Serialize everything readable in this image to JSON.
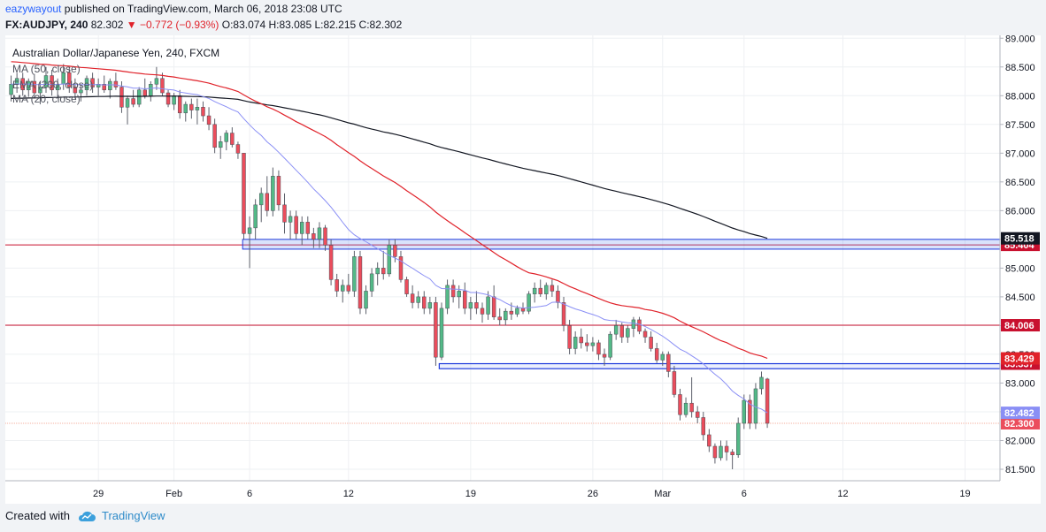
{
  "header": {
    "user": "eazywayout",
    "published": "published on TradingView.com, March 06, 2018 23:08 UTC",
    "symbol": "FX:AUDJPY, 240",
    "last": "82.302",
    "change_arrow": "▼",
    "change": "−0.772 (−0.93%)",
    "ohlc": "O:83.074 H:83.085 L:82.215 C:82.302"
  },
  "footer": {
    "created": "Created with",
    "brand": "TradingView",
    "logo_icon": "tradingview-cloud-icon"
  },
  "chart_data": {
    "type": "candlestick",
    "title": "Australian Dollar/Japanese Yen, 240, FXCM",
    "legend": [
      "MA (50, close)",
      "EMA (200, close)",
      "MA (20, close)"
    ],
    "colors": {
      "up": "#53b987",
      "down": "#eb4d5c",
      "ma50": "#e0222a",
      "ema200": "#131722",
      "ma20": "#8a8ff5",
      "hline": "#c8102e",
      "zone": "#1e3adb"
    },
    "y_ticks": [
      "81.500",
      "82.000",
      "82.500",
      "83.000",
      "83.500",
      "84.000",
      "84.500",
      "85.000",
      "85.500",
      "86.000",
      "86.500",
      "87.000",
      "87.500",
      "88.000",
      "88.500",
      "89.000"
    ],
    "ylim": [
      81.3,
      89.05
    ],
    "x_ticks": [
      {
        "label": "29",
        "idx": 15
      },
      {
        "label": "Feb",
        "idx": 28
      },
      {
        "label": "6",
        "idx": 41
      },
      {
        "label": "12",
        "idx": 58
      },
      {
        "label": "19",
        "idx": 79
      },
      {
        "label": "26",
        "idx": 100
      },
      {
        "label": "Mar",
        "idx": 112
      },
      {
        "label": "6",
        "idx": 126
      },
      {
        "label": "12",
        "idx": 143
      },
      {
        "label": "19",
        "idx": 164
      }
    ],
    "xlim": [
      -1,
      170
    ],
    "ohlc": [
      [
        88.02,
        88.35,
        87.9,
        88.2
      ],
      [
        88.2,
        88.4,
        88.05,
        88.3
      ],
      [
        88.3,
        88.4,
        88.0,
        88.1
      ],
      [
        88.1,
        88.3,
        87.98,
        88.25
      ],
      [
        88.25,
        88.38,
        87.95,
        88.05
      ],
      [
        88.05,
        88.25,
        87.85,
        88.15
      ],
      [
        88.15,
        88.5,
        88.05,
        88.35
      ],
      [
        88.35,
        88.45,
        88.0,
        88.1
      ],
      [
        88.1,
        88.3,
        87.95,
        88.2
      ],
      [
        88.2,
        88.55,
        88.1,
        88.4
      ],
      [
        88.4,
        88.5,
        88.05,
        88.15
      ],
      [
        88.15,
        88.3,
        87.95,
        88.05
      ],
      [
        88.05,
        88.2,
        87.9,
        88.1
      ],
      [
        88.1,
        88.35,
        88.0,
        88.3
      ],
      [
        88.3,
        88.4,
        88.05,
        88.15
      ],
      [
        88.15,
        88.3,
        88.0,
        88.2
      ],
      [
        88.2,
        88.35,
        88.05,
        88.1
      ],
      [
        88.1,
        88.3,
        87.95,
        88.25
      ],
      [
        88.25,
        88.4,
        88.1,
        88.15
      ],
      [
        88.15,
        88.25,
        87.7,
        87.8
      ],
      [
        87.8,
        88.0,
        87.5,
        87.95
      ],
      [
        87.95,
        88.1,
        87.8,
        87.85
      ],
      [
        87.85,
        88.15,
        87.8,
        88.1
      ],
      [
        88.1,
        88.3,
        87.95,
        88.0
      ],
      [
        88.0,
        88.25,
        87.9,
        88.2
      ],
      [
        88.2,
        88.5,
        88.1,
        88.3
      ],
      [
        88.3,
        88.4,
        88.0,
        88.05
      ],
      [
        88.05,
        88.1,
        87.8,
        87.85
      ],
      [
        87.85,
        88.05,
        87.75,
        88.0
      ],
      [
        88.0,
        88.1,
        87.6,
        87.7
      ],
      [
        87.7,
        87.9,
        87.55,
        87.85
      ],
      [
        87.85,
        87.95,
        87.6,
        87.75
      ],
      [
        87.75,
        87.95,
        87.5,
        87.8
      ],
      [
        87.8,
        87.9,
        87.55,
        87.65
      ],
      [
        87.65,
        87.8,
        87.4,
        87.5
      ],
      [
        87.5,
        87.6,
        87.0,
        87.1
      ],
      [
        87.1,
        87.3,
        86.9,
        87.2
      ],
      [
        87.2,
        87.4,
        87.05,
        87.35
      ],
      [
        87.35,
        87.45,
        87.1,
        87.15
      ],
      [
        87.15,
        87.2,
        86.9,
        87.0
      ],
      [
        87.0,
        87.0,
        85.5,
        85.6
      ],
      [
        85.6,
        85.9,
        85.0,
        85.7
      ],
      [
        85.7,
        86.2,
        85.5,
        86.1
      ],
      [
        86.1,
        86.4,
        85.8,
        86.3
      ],
      [
        86.3,
        86.6,
        85.9,
        86.0
      ],
      [
        86.0,
        86.75,
        85.9,
        86.6
      ],
      [
        86.6,
        86.7,
        86.0,
        86.1
      ],
      [
        86.1,
        86.3,
        85.6,
        85.8
      ],
      [
        85.8,
        86.0,
        85.5,
        85.9
      ],
      [
        85.9,
        86.0,
        85.5,
        85.6
      ],
      [
        85.6,
        85.9,
        85.4,
        85.8
      ],
      [
        85.8,
        85.9,
        85.5,
        85.6
      ],
      [
        85.6,
        85.7,
        85.35,
        85.5
      ],
      [
        85.5,
        85.8,
        85.35,
        85.7
      ],
      [
        85.7,
        85.75,
        85.3,
        85.4
      ],
      [
        85.4,
        85.5,
        84.7,
        84.8
      ],
      [
        84.8,
        84.9,
        84.5,
        84.6
      ],
      [
        84.6,
        84.8,
        84.4,
        84.7
      ],
      [
        84.7,
        84.9,
        84.55,
        84.6
      ],
      [
        84.6,
        85.3,
        84.5,
        85.2
      ],
      [
        85.2,
        85.3,
        84.2,
        84.3
      ],
      [
        84.3,
        84.7,
        84.2,
        84.6
      ],
      [
        84.6,
        85.0,
        84.5,
        84.9
      ],
      [
        84.9,
        85.1,
        84.7,
        85.0
      ],
      [
        85.0,
        85.3,
        84.8,
        84.9
      ],
      [
        84.9,
        85.5,
        84.85,
        85.4
      ],
      [
        85.4,
        85.5,
        85.1,
        85.2
      ],
      [
        85.2,
        85.3,
        84.75,
        84.8
      ],
      [
        84.8,
        84.85,
        84.5,
        84.55
      ],
      [
        84.55,
        84.7,
        84.3,
        84.4
      ],
      [
        84.4,
        84.6,
        84.3,
        84.5
      ],
      [
        84.5,
        84.6,
        84.2,
        84.3
      ],
      [
        84.3,
        84.5,
        84.2,
        84.4
      ],
      [
        84.4,
        84.5,
        83.3,
        83.45
      ],
      [
        83.45,
        84.4,
        83.4,
        84.3
      ],
      [
        84.3,
        84.8,
        84.2,
        84.7
      ],
      [
        84.7,
        84.8,
        84.4,
        84.5
      ],
      [
        84.5,
        84.7,
        84.3,
        84.6
      ],
      [
        84.6,
        84.75,
        84.2,
        84.3
      ],
      [
        84.3,
        84.5,
        84.1,
        84.4
      ],
      [
        84.4,
        84.6,
        84.2,
        84.3
      ],
      [
        84.3,
        84.4,
        84.05,
        84.2
      ],
      [
        84.2,
        84.6,
        84.1,
        84.5
      ],
      [
        84.5,
        84.7,
        84.1,
        84.15
      ],
      [
        84.15,
        84.3,
        84.0,
        84.1
      ],
      [
        84.1,
        84.3,
        84.0,
        84.25
      ],
      [
        84.25,
        84.4,
        84.1,
        84.2
      ],
      [
        84.2,
        84.35,
        84.15,
        84.3
      ],
      [
        84.3,
        84.4,
        84.2,
        84.25
      ],
      [
        84.25,
        84.6,
        84.2,
        84.55
      ],
      [
        84.55,
        84.75,
        84.4,
        84.65
      ],
      [
        84.65,
        84.8,
        84.5,
        84.55
      ],
      [
        84.55,
        84.75,
        84.45,
        84.7
      ],
      [
        84.7,
        84.8,
        84.5,
        84.6
      ],
      [
        84.6,
        84.7,
        84.3,
        84.4
      ],
      [
        84.4,
        84.5,
        83.9,
        84.0
      ],
      [
        84.0,
        84.1,
        83.5,
        83.6
      ],
      [
        83.6,
        83.9,
        83.5,
        83.8
      ],
      [
        83.8,
        83.95,
        83.6,
        83.7
      ],
      [
        83.7,
        83.85,
        83.55,
        83.65
      ],
      [
        83.65,
        83.8,
        83.55,
        83.7
      ],
      [
        83.7,
        83.75,
        83.4,
        83.5
      ],
      [
        83.5,
        83.6,
        83.3,
        83.45
      ],
      [
        83.45,
        83.9,
        83.4,
        83.85
      ],
      [
        83.85,
        84.1,
        83.75,
        84.0
      ],
      [
        84.0,
        84.05,
        83.7,
        83.8
      ],
      [
        83.8,
        84.0,
        83.7,
        83.95
      ],
      [
        83.95,
        84.15,
        83.8,
        84.1
      ],
      [
        84.1,
        84.15,
        83.85,
        83.9
      ],
      [
        83.9,
        83.95,
        83.7,
        83.8
      ],
      [
        83.8,
        83.9,
        83.55,
        83.6
      ],
      [
        83.6,
        83.7,
        83.35,
        83.4
      ],
      [
        83.4,
        83.55,
        83.3,
        83.5
      ],
      [
        83.5,
        83.55,
        83.1,
        83.2
      ],
      [
        83.2,
        83.3,
        82.75,
        82.8
      ],
      [
        82.8,
        82.9,
        82.35,
        82.45
      ],
      [
        82.45,
        82.75,
        82.4,
        82.65
      ],
      [
        82.65,
        83.1,
        82.4,
        82.5
      ],
      [
        82.5,
        82.6,
        82.3,
        82.4
      ],
      [
        82.4,
        82.5,
        82.0,
        82.1
      ],
      [
        82.1,
        82.2,
        81.8,
        81.9
      ],
      [
        81.9,
        81.95,
        81.6,
        81.7
      ],
      [
        81.7,
        82.0,
        81.65,
        81.9
      ],
      [
        81.9,
        82.0,
        81.65,
        81.8
      ],
      [
        81.8,
        81.85,
        81.5,
        81.75
      ],
      [
        81.75,
        82.4,
        81.7,
        82.3
      ],
      [
        82.3,
        82.8,
        82.2,
        82.7
      ],
      [
        82.7,
        82.8,
        82.2,
        82.3
      ],
      [
        82.3,
        83.0,
        82.2,
        82.9
      ],
      [
        82.9,
        83.2,
        82.8,
        83.1
      ],
      [
        83.07,
        83.09,
        82.22,
        82.3
      ]
    ]
  }
}
